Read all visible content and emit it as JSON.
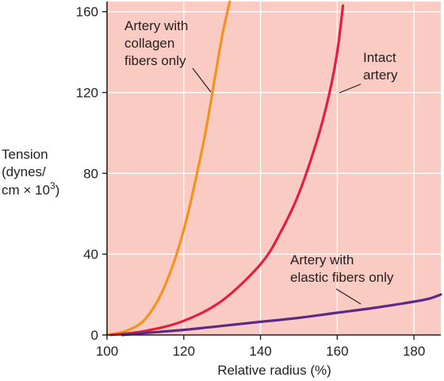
{
  "chart_data": {
    "type": "line",
    "title": "",
    "xlabel": "Relative radius (%)",
    "ylabel": {
      "lines": [
        "Tension",
        "(dynes/",
        "cm × 10"
      ],
      "superscript": "3",
      "closing": ")"
    },
    "xlim": [
      100,
      187
    ],
    "ylim": [
      0,
      165
    ],
    "x_ticks": [
      100,
      120,
      140,
      160,
      180
    ],
    "y_ticks": [
      0,
      40,
      80,
      120,
      160
    ],
    "grid": true,
    "colors": {
      "plot_background": "#f9cbc3",
      "grid": "#ffffff",
      "axis": "#231f20"
    },
    "series": [
      {
        "id": "collagen",
        "color": "#f5921e",
        "annotation": [
          "Artery with",
          "collagen",
          "fibers only"
        ],
        "x": [
          100,
          105,
          110,
          115,
          120,
          125,
          128,
          130,
          132
        ],
        "y": [
          0,
          2,
          8,
          24,
          52,
          94,
          126,
          148,
          165
        ]
      },
      {
        "id": "intact",
        "color": "#e41e3f",
        "annotation": [
          "Intact",
          "artery"
        ],
        "x": [
          101,
          110,
          120,
          130,
          140,
          145,
          150,
          155,
          158,
          160,
          161.5
        ],
        "y": [
          0,
          2,
          7,
          17,
          35,
          50,
          70,
          98,
          120,
          140,
          163
        ]
      },
      {
        "id": "elastic",
        "color": "#5b2a86",
        "annotation": [
          "Artery with",
          "elastic fibers only"
        ],
        "x": [
          104,
          110,
          120,
          130,
          140,
          150,
          160,
          170,
          180,
          184,
          187
        ],
        "y": [
          0,
          1,
          2.5,
          4.5,
          6.5,
          8.5,
          11,
          13.5,
          16.5,
          18,
          20
        ]
      }
    ]
  }
}
